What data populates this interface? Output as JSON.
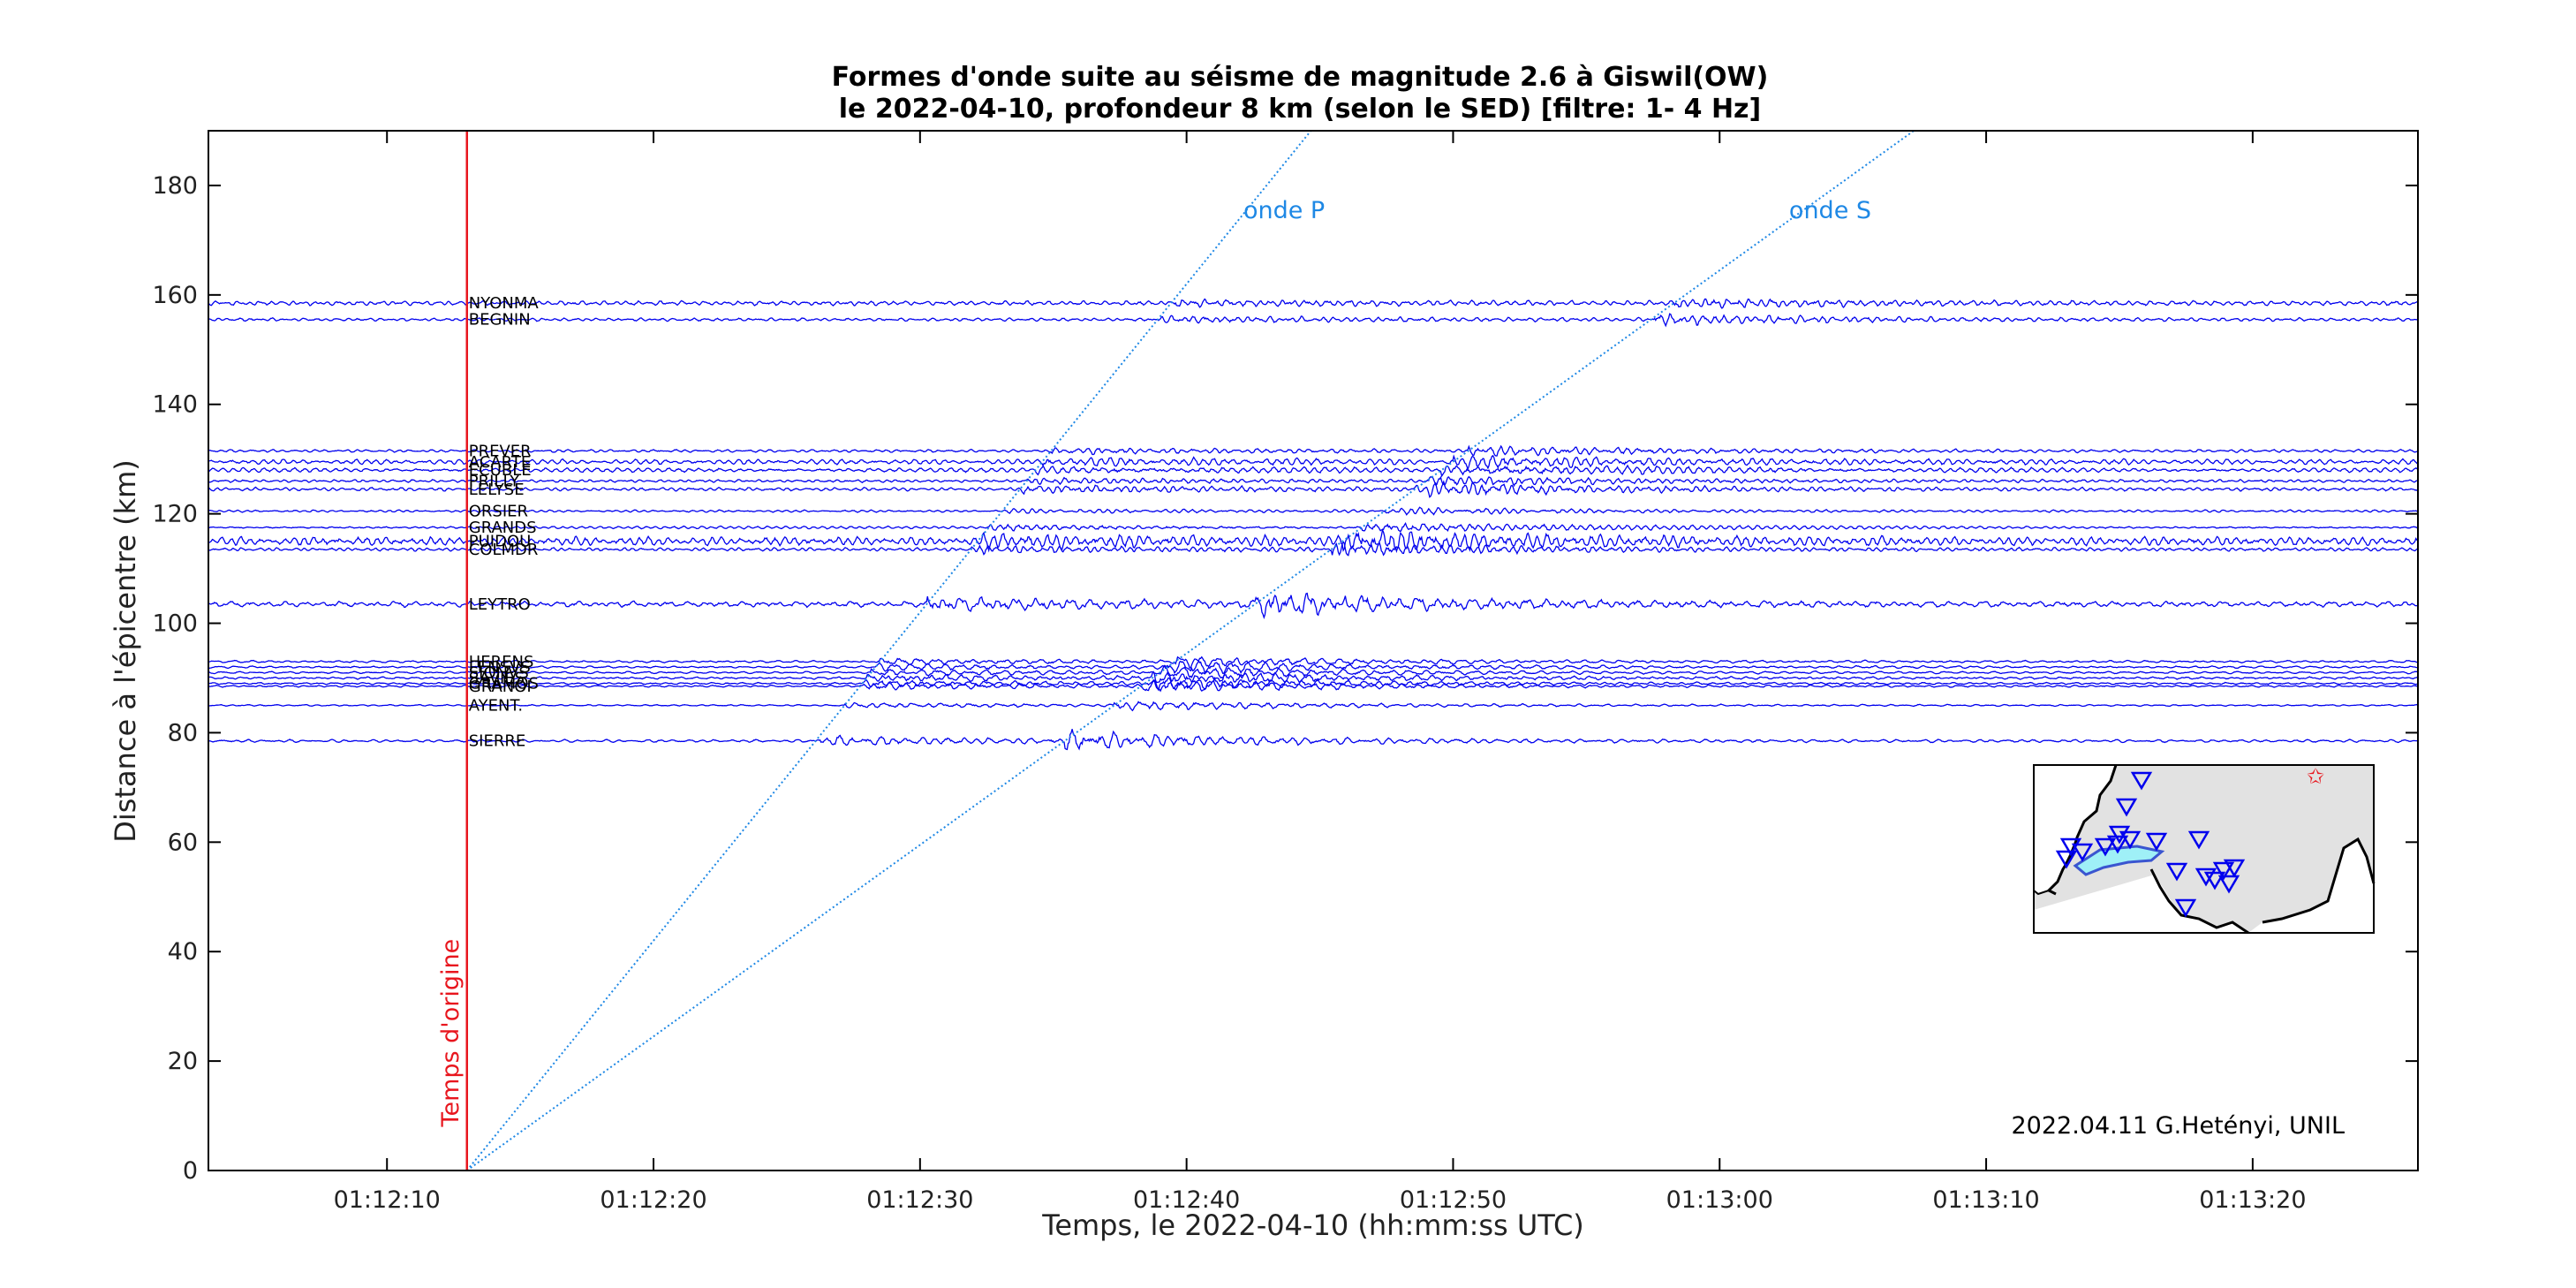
{
  "colors": {
    "waveform": "#0000ee",
    "origin_line": "#e8161e",
    "wave_lines": "#1e88e5",
    "map_land": "#e2e2e2",
    "map_lake": "#9ff0f7",
    "station_marker": "#0000ee",
    "epicenter_marker": "#e8161e"
  },
  "credit": "2022.04.11 G.Hetényi, UNIL",
  "chart_data": {
    "type": "line",
    "title": [
      "Formes d'onde suite au séisme de magnitude 2.6 à Giswil(OW)",
      "le 2022-04-10, profondeur  8 km (selon le SED) [filtre: 1- 4 Hz]"
    ],
    "xlabel": "Temps, le 2022-04-10 (hh:mm:ss UTC)",
    "ylabel": "Distance à l'épicentre (km)",
    "xlim_seconds_after_01_12_00": [
      3.3,
      86.2
    ],
    "ylim": [
      0,
      190
    ],
    "x_ticks": [
      {
        "t": 10,
        "label": "01:12:10"
      },
      {
        "t": 20,
        "label": "01:12:20"
      },
      {
        "t": 30,
        "label": "01:12:30"
      },
      {
        "t": 40,
        "label": "01:12:40"
      },
      {
        "t": 50,
        "label": "01:12:50"
      },
      {
        "t": 60,
        "label": "01:13:00"
      },
      {
        "t": 70,
        "label": "01:13:10"
      },
      {
        "t": 80,
        "label": "01:13:20"
      }
    ],
    "y_ticks": [
      0,
      20,
      40,
      60,
      80,
      100,
      120,
      140,
      160,
      180
    ],
    "origin": {
      "t": 13.0,
      "label": "Temps d'origine"
    },
    "phases": [
      {
        "label": "onde P",
        "velocity_km_s": 6.0
      },
      {
        "label": "onde S",
        "velocity_km_s": 3.5
      }
    ],
    "stations": [
      {
        "name": "NYONMA",
        "distance_km": 158.5,
        "amplitude": 1.6,
        "strength": 1.6
      },
      {
        "name": "BEGNIN",
        "distance_km": 155.5,
        "amplitude": 1.1,
        "strength": 3.0
      },
      {
        "name": "PREVER",
        "distance_km": 131.5,
        "amplitude": 1.0,
        "strength": 3.0
      },
      {
        "name": "ACARTE",
        "distance_km": 129.5,
        "amplitude": 1.8,
        "strength": 2.0
      },
      {
        "name": "ECUBLE",
        "distance_km": 128.0,
        "amplitude": 1.5,
        "strength": 2.5
      },
      {
        "name": "PRILLY",
        "distance_km": 126.0,
        "amplitude": 1.0,
        "strength": 3.0
      },
      {
        "name": "LELYSE",
        "distance_km": 124.5,
        "amplitude": 1.2,
        "strength": 3.5
      },
      {
        "name": "ORSIER",
        "distance_km": 120.5,
        "amplitude": 0.8,
        "strength": 2.5
      },
      {
        "name": "GRANDS",
        "distance_km": 117.5,
        "amplitude": 0.9,
        "strength": 4.0
      },
      {
        "name": "PUIDOU",
        "distance_km": 115.0,
        "amplitude": 3.0,
        "strength": 2.0
      },
      {
        "name": "COLMDR",
        "distance_km": 113.5,
        "amplitude": 1.2,
        "strength": 3.0
      },
      {
        "name": "LEYTRO",
        "distance_km": 103.5,
        "amplitude": 2.0,
        "strength": 3.5
      },
      {
        "name": "HERENS",
        "distance_km": 93.0,
        "amplitude": 0.8,
        "strength": 4.0
      },
      {
        "name": "LENSVS",
        "distance_km": 92.0,
        "amplitude": 0.8,
        "strength": 4.5
      },
      {
        "name": "SIONVS",
        "distance_km": 91.0,
        "amplitude": 0.8,
        "strength": 4.5
      },
      {
        "name": "SAVIES",
        "distance_km": 90.0,
        "amplitude": 0.8,
        "strength": 5.0
      },
      {
        "name": "GRAMOS",
        "distance_km": 89.0,
        "amplitude": 0.7,
        "strength": 5.5
      },
      {
        "name": "GRANOI",
        "distance_km": 88.5,
        "amplitude": 0.7,
        "strength": 5.5
      },
      {
        "name": "AYENT.",
        "distance_km": 85.0,
        "amplitude": 0.6,
        "strength": 5.0
      },
      {
        "name": "SIERRE",
        "distance_km": 78.5,
        "amplitude": 1.0,
        "strength": 5.5
      }
    ]
  }
}
